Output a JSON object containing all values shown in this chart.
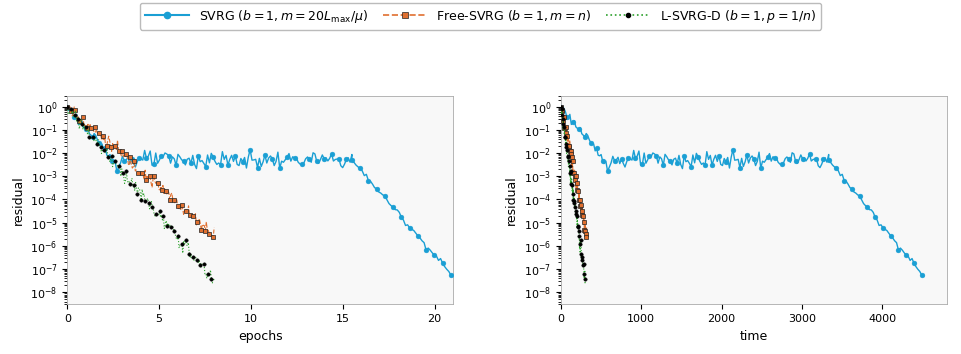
{
  "svrg_color": "#1a9fd4",
  "free_svrg_color": "#e07030",
  "lsvrgd_color": "#2ca02c",
  "lsvrgd_dot_color": "#000000",
  "xlabel_left": "epochs",
  "xlabel_right": "time",
  "ylabel": "residual",
  "xlim_left": [
    0,
    21
  ],
  "xlim_right": [
    0,
    4800
  ],
  "ylim": [
    3e-09,
    3.0
  ],
  "figsize": [
    9.61,
    3.54
  ],
  "dpi": 100,
  "legend_fontsize": 9,
  "axis_fontsize": 9,
  "tick_fontsize": 8
}
